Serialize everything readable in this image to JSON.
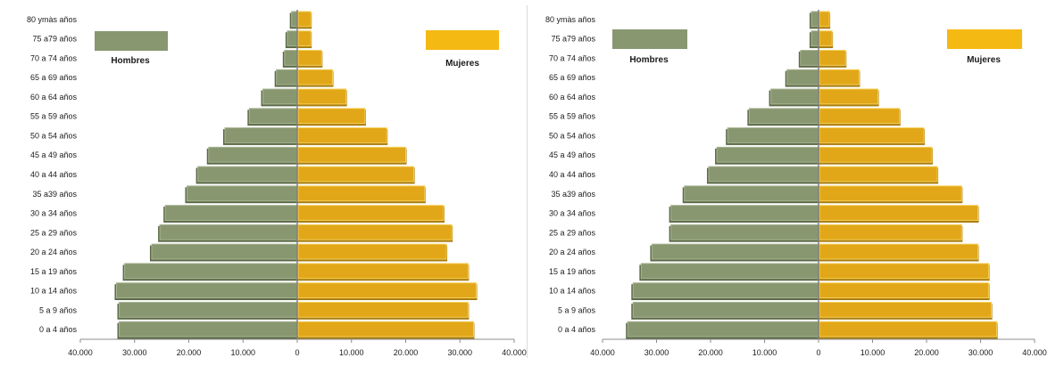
{
  "chart_data": [
    {
      "type": "bar",
      "categories": [
        "0 a 4 años",
        "5 a 9 años",
        "10 a 14 años",
        "15 a 19 años",
        "20 a 24 años",
        "25 a 29 años",
        "30 a 34 años",
        "35 a39 años",
        "40 a 44 años",
        "45 a 49 años",
        "50 a 54 años",
        "55 a 59 años",
        "60 a 64 años",
        "65 a 69 años",
        "70 a 74 años",
        "75 a79 años",
        "80 ymàs años"
      ],
      "series": [
        {
          "name": "Hombres",
          "color": "#889770",
          "values": [
            33000,
            33000,
            33500,
            32000,
            27000,
            25500,
            24500,
            20500,
            18500,
            16500,
            13500,
            9000,
            6500,
            4000,
            2500,
            2000,
            1200
          ]
        },
        {
          "name": "Mujeres",
          "color": "#E1A718",
          "values": [
            32500,
            31500,
            33000,
            31500,
            27500,
            28500,
            27000,
            23500,
            21500,
            20000,
            16500,
            12500,
            9000,
            6500,
            4500,
            2500,
            2500
          ]
        }
      ],
      "xticks": [
        "40.000",
        "30.000",
        "20.000",
        "10.000",
        "0",
        "10.000",
        "20.000",
        "30.000",
        "40.000"
      ],
      "xlim": [
        -40000,
        40000
      ],
      "legend_placement": "top",
      "grid": false
    },
    {
      "type": "bar",
      "categories": [
        "0 a 4 años",
        "5 a 9 años",
        "10 a 14 años",
        "15 a 19 años",
        "20 a 24 años",
        "25 a 29 años",
        "30 a 34 años",
        "35 a39 años",
        "40 a 44 años",
        "45 a 49 años",
        "50 a 54 años",
        "55 a 59 años",
        "60 a 64 años",
        "65 a 69 años",
        "70 a 74 años",
        "75 a79 años",
        "80 ymàs años"
      ],
      "series": [
        {
          "name": "Hombres",
          "color": "#889770",
          "values": [
            35500,
            34500,
            34500,
            33000,
            31000,
            27500,
            27500,
            25000,
            20500,
            19000,
            17000,
            13000,
            9000,
            6000,
            3500,
            1500,
            1500
          ]
        },
        {
          "name": "Mujeres",
          "color": "#E1A718",
          "values": [
            33000,
            32000,
            31500,
            31500,
            29500,
            26500,
            29500,
            26500,
            22000,
            21000,
            19500,
            15000,
            11000,
            7500,
            5000,
            2500,
            2000
          ]
        }
      ],
      "xticks": [
        "40.000",
        "30.000",
        "20.000",
        "10.000",
        "0",
        "10.000",
        "20.000",
        "30.000",
        "40.000"
      ],
      "xlim": [
        -40000,
        40000
      ],
      "legend_placement": "top",
      "grid": false
    }
  ]
}
